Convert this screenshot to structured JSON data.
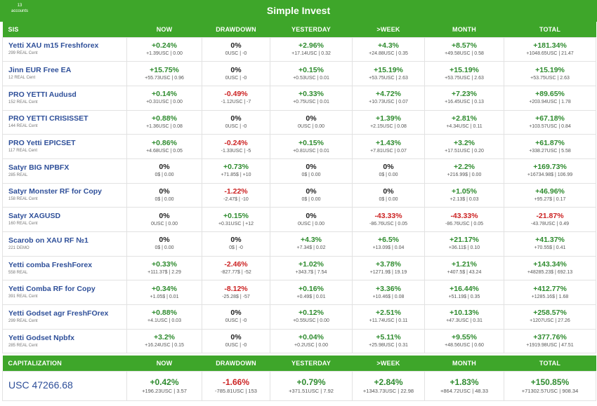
{
  "header": {
    "accounts_count": "13",
    "accounts_label": "accounts",
    "title": "Simple Invest"
  },
  "columns": [
    "SIS",
    "NOW",
    "DRAWDOWN",
    "YESTERDAY",
    ">WEEK",
    "MONTH",
    "TOTAL"
  ],
  "rows": [
    {
      "name": "Yetti XAU m15 Freshforex",
      "sub": "299 REAL Cent",
      "cells": [
        {
          "p": "+0.24%",
          "d": "+1.39USC | 0.00",
          "s": "pos"
        },
        {
          "p": "0%",
          "d": "0USC | -0",
          "s": "zero"
        },
        {
          "p": "+2.96%",
          "d": "+17.14USC | 0.32",
          "s": "pos"
        },
        {
          "p": "+4.3%",
          "d": "+24.88USC | 0.35",
          "s": "pos"
        },
        {
          "p": "+8.57%",
          "d": "+49.58USC | 0.58",
          "s": "pos"
        },
        {
          "p": "+181.34%",
          "d": "+1048.65USC | 21.47",
          "s": "pos"
        }
      ]
    },
    {
      "name": "Jinn EUR Free EA",
      "sub": "12 REAL Cent",
      "cells": [
        {
          "p": "+15.75%",
          "d": "+55.73USC | 0.96",
          "s": "pos"
        },
        {
          "p": "0%",
          "d": "0USC | -0",
          "s": "zero"
        },
        {
          "p": "+0.15%",
          "d": "+0.53USC | 0.01",
          "s": "pos"
        },
        {
          "p": "+15.19%",
          "d": "+53.75USC | 2.63",
          "s": "pos"
        },
        {
          "p": "+15.19%",
          "d": "+53.75USC | 2.63",
          "s": "pos"
        },
        {
          "p": "+15.19%",
          "d": "+53.75USC | 2.63",
          "s": "pos"
        }
      ]
    },
    {
      "name": "PRO YETTI Audusd",
      "sub": "152 REAL Cent",
      "cells": [
        {
          "p": "+0.14%",
          "d": "+0.31USC | 0.00",
          "s": "pos"
        },
        {
          "p": "-0.49%",
          "d": "-1.12USC | -7",
          "s": "neg"
        },
        {
          "p": "+0.33%",
          "d": "+0.75USC | 0.01",
          "s": "pos"
        },
        {
          "p": "+4.72%",
          "d": "+10.73USC | 0.07",
          "s": "pos"
        },
        {
          "p": "+7.23%",
          "d": "+16.45USC | 0.13",
          "s": "pos"
        },
        {
          "p": "+89.65%",
          "d": "+203.94USC | 1.78",
          "s": "pos"
        }
      ]
    },
    {
      "name": "PRO YETTI CRISISSET",
      "sub": "144 REAL Cent",
      "cells": [
        {
          "p": "+0.88%",
          "d": "+1.36USC | 0.08",
          "s": "pos"
        },
        {
          "p": "0%",
          "d": "0USC | -0",
          "s": "zero"
        },
        {
          "p": "0%",
          "d": "0USC | 0.00",
          "s": "zero"
        },
        {
          "p": "+1.39%",
          "d": "+2.15USC | 0.08",
          "s": "pos"
        },
        {
          "p": "+2.81%",
          "d": "+4.34USC | 0.11",
          "s": "pos"
        },
        {
          "p": "+67.18%",
          "d": "+103.57USC | 0.84",
          "s": "pos"
        }
      ]
    },
    {
      "name": "PRO Yetti EPICSET",
      "sub": "117 REAL Cent",
      "cells": [
        {
          "p": "+0.86%",
          "d": "+4.68USC | 0.05",
          "s": "pos"
        },
        {
          "p": "-0.24%",
          "d": "-1.33USC | -5",
          "s": "neg"
        },
        {
          "p": "+0.15%",
          "d": "+0.81USC | 0.01",
          "s": "pos"
        },
        {
          "p": "+1.43%",
          "d": "+7.81USC | 0.07",
          "s": "pos"
        },
        {
          "p": "+3.2%",
          "d": "+17.51USC | 0.20",
          "s": "pos"
        },
        {
          "p": "+61.87%",
          "d": "+338.27USC | 5.58",
          "s": "pos"
        }
      ]
    },
    {
      "name": "Satyr BIG NPBFX",
      "sub": "285 REAL",
      "cells": [
        {
          "p": "0%",
          "d": "0$ | 0.00",
          "s": "zero"
        },
        {
          "p": "+0.73%",
          "d": "+71.85$ | +10",
          "s": "pos"
        },
        {
          "p": "0%",
          "d": "0$ | 0.00",
          "s": "zero"
        },
        {
          "p": "0%",
          "d": "0$ | 0.00",
          "s": "zero"
        },
        {
          "p": "+2.2%",
          "d": "+216.99$ | 0.00",
          "s": "pos"
        },
        {
          "p": "+169.73%",
          "d": "+16734.98$ | 106.99",
          "s": "pos"
        }
      ]
    },
    {
      "name": "Satyr Monster RF for Copy",
      "sub": "158 REAL Cent",
      "cells": [
        {
          "p": "0%",
          "d": "0$ | 0.00",
          "s": "zero"
        },
        {
          "p": "-1.22%",
          "d": "-2.47$ | -10",
          "s": "neg"
        },
        {
          "p": "0%",
          "d": "0$ | 0.00",
          "s": "zero"
        },
        {
          "p": "0%",
          "d": "0$ | 0.00",
          "s": "zero"
        },
        {
          "p": "+1.05%",
          "d": "+2.13$ | 0.03",
          "s": "pos"
        },
        {
          "p": "+46.96%",
          "d": "+95.27$ | 0.17",
          "s": "pos"
        }
      ]
    },
    {
      "name": "Satyr XAGUSD",
      "sub": "160 REAL Cent",
      "cells": [
        {
          "p": "0%",
          "d": "0USC | 0.00",
          "s": "zero"
        },
        {
          "p": "+0.15%",
          "d": "+0.31USC | +12",
          "s": "pos"
        },
        {
          "p": "0%",
          "d": "0USC | 0.00",
          "s": "zero"
        },
        {
          "p": "-43.33%",
          "d": "-86.76USC | 0.05",
          "s": "neg"
        },
        {
          "p": "-43.33%",
          "d": "-86.76USC | 0.05",
          "s": "neg"
        },
        {
          "p": "-21.87%",
          "d": "-43.78USC | 0.49",
          "s": "neg"
        }
      ]
    },
    {
      "name": "Scarob on XAU RF №1",
      "sub": "221 DEMO",
      "cells": [
        {
          "p": "0%",
          "d": "0$ | 0.00",
          "s": "zero"
        },
        {
          "p": "0%",
          "d": "0$ | -0",
          "s": "zero"
        },
        {
          "p": "+4.3%",
          "d": "+7.34$ | 0.02",
          "s": "pos"
        },
        {
          "p": "+6.5%",
          "d": "+13.09$ | 0.04",
          "s": "pos"
        },
        {
          "p": "+21.17%",
          "d": "+36.11$ | 0.10",
          "s": "pos"
        },
        {
          "p": "+41.37%",
          "d": "+70.55$ | 0.41",
          "s": "pos"
        }
      ]
    },
    {
      "name": "Yetti comba FreshForex",
      "sub": "558 REAL",
      "cells": [
        {
          "p": "+0.33%",
          "d": "+111.37$ | 2.29",
          "s": "pos"
        },
        {
          "p": "-2.46%",
          "d": "-827.77$ | -52",
          "s": "neg"
        },
        {
          "p": "+1.02%",
          "d": "+343.7$ | 7.54",
          "s": "pos"
        },
        {
          "p": "+3.78%",
          "d": "+1271.9$ | 19.19",
          "s": "pos"
        },
        {
          "p": "+1.21%",
          "d": "+407.5$ | 43.24",
          "s": "pos"
        },
        {
          "p": "+143.34%",
          "d": "+48285.23$ | 692.13",
          "s": "pos"
        }
      ]
    },
    {
      "name": "Yetti Comba RF for Copy",
      "sub": "391 REAL Cent",
      "cells": [
        {
          "p": "+0.34%",
          "d": "+1.05$ | 0.01",
          "s": "pos"
        },
        {
          "p": "-8.12%",
          "d": "-25.28$ | -57",
          "s": "neg"
        },
        {
          "p": "+0.16%",
          "d": "+0.49$ | 0.01",
          "s": "pos"
        },
        {
          "p": "+3.36%",
          "d": "+10.46$ | 0.08",
          "s": "pos"
        },
        {
          "p": "+16.44%",
          "d": "+51.19$ | 0.35",
          "s": "pos"
        },
        {
          "p": "+412.77%",
          "d": "+1285.16$ | 1.68",
          "s": "pos"
        }
      ]
    },
    {
      "name": "Yetti Godset agr FreshFOrex",
      "sub": "299 REAL Cent",
      "cells": [
        {
          "p": "+0.88%",
          "d": "+4.1USC | 0.03",
          "s": "pos"
        },
        {
          "p": "0%",
          "d": "0USC | -0",
          "s": "zero"
        },
        {
          "p": "+0.12%",
          "d": "+0.55USC | 0.00",
          "s": "pos"
        },
        {
          "p": "+2.51%",
          "d": "+11.74USC | 0.11",
          "s": "pos"
        },
        {
          "p": "+10.13%",
          "d": "+47.3USC | 0.31",
          "s": "pos"
        },
        {
          "p": "+258.57%",
          "d": "+1207USC | 27.26",
          "s": "pos"
        }
      ]
    },
    {
      "name": "Yetti Godset Npbfx",
      "sub": "285 REAL Cent",
      "cells": [
        {
          "p": "+3.2%",
          "d": "+16.24USC | 0.15",
          "s": "pos"
        },
        {
          "p": "0%",
          "d": "0USC | -0",
          "s": "zero"
        },
        {
          "p": "+0.04%",
          "d": "+0.2USC | 0.00",
          "s": "pos"
        },
        {
          "p": "+5.11%",
          "d": "+25.98USC | 0.31",
          "s": "pos"
        },
        {
          "p": "+9.55%",
          "d": "+48.56USC | 0.60",
          "s": "pos"
        },
        {
          "p": "+377.76%",
          "d": "+1919.98USC | 47.51",
          "s": "pos"
        }
      ]
    }
  ],
  "capitalization": {
    "columns": [
      "CAPITALIZATION",
      "NOW",
      "DRAWDOWN",
      "YESTERDAY",
      ">WEEK",
      "MONTH",
      "TOTAL"
    ],
    "value": "USC 47266.68",
    "cells": [
      {
        "p": "+0.42%",
        "d": "+196.23USC | 3.57",
        "s": "pos"
      },
      {
        "p": "-1.66%",
        "d": "-785.81USC | 153",
        "s": "neg"
      },
      {
        "p": "+0.79%",
        "d": "+371.51USC | 7.92",
        "s": "pos"
      },
      {
        "p": "+2.84%",
        "d": "+1343.73USC | 22.98",
        "s": "pos"
      },
      {
        "p": "+1.83%",
        "d": "+864.72USC | 48.33",
        "s": "pos"
      },
      {
        "p": "+150.85%",
        "d": "+71302.57USC | 908.34",
        "s": "pos"
      }
    ]
  },
  "colors": {
    "header_green": "#3ea62a",
    "positive": "#2e8b2e",
    "negative": "#cc2222",
    "name_blue": "#2e4f99"
  }
}
